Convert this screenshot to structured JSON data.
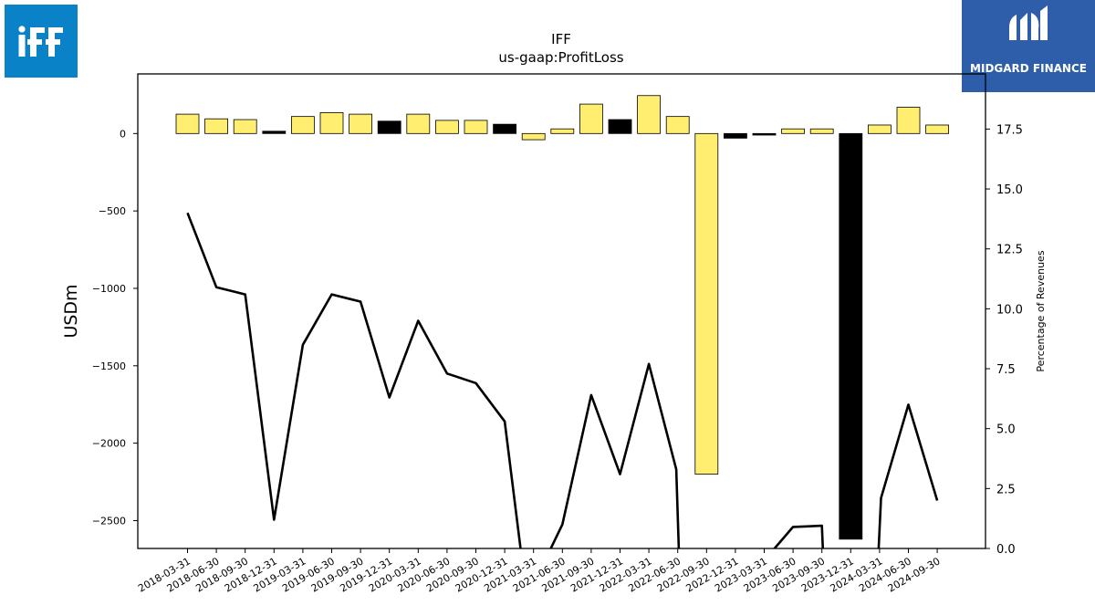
{
  "logos": {
    "left": {
      "text": "iff",
      "color": "#0a82c8"
    },
    "right": {
      "text": "MIDGARD FINANCE",
      "color": "#2e5eaa"
    }
  },
  "chart_data": {
    "type": "bar",
    "title": "IFF",
    "subtitle": "us-gaap:ProfitLoss",
    "ylabel": "USDm",
    "y2label": "Percentage of Revenues",
    "ylim": [
      -2680,
      385
    ],
    "y2lim": [
      0.0,
      19.8
    ],
    "yticks": [
      0,
      -500,
      -1000,
      -1500,
      -2000,
      -2500
    ],
    "ytick_labels": [
      "0",
      "−500",
      "−1000",
      "−1500",
      "−2000",
      "−2500"
    ],
    "y2ticks": [
      0.0,
      2.5,
      5.0,
      7.5,
      10.0,
      12.5,
      15.0,
      17.5
    ],
    "y2tick_labels": [
      "0.0",
      "2.5",
      "5.0",
      "7.5",
      "10.0",
      "12.5",
      "15.0",
      "17.5"
    ],
    "categories": [
      "2018-03-31",
      "2018-06-30",
      "2018-09-30",
      "2018-12-31",
      "2019-03-31",
      "2019-06-30",
      "2019-09-30",
      "2019-12-31",
      "2020-03-31",
      "2020-06-30",
      "2020-09-30",
      "2020-12-31",
      "2021-03-31",
      "2021-06-30",
      "2021-09-30",
      "2021-12-31",
      "2022-03-31",
      "2022-06-30",
      "2022-09-30",
      "2022-12-31",
      "2023-03-31",
      "2023-06-30",
      "2023-09-30",
      "2023-12-31",
      "2024-03-31",
      "2024-06-30",
      "2024-09-30"
    ],
    "series": [
      {
        "type": "bar",
        "values": [
          125,
          95,
          90,
          15,
          110,
          135,
          125,
          80,
          125,
          85,
          85,
          60,
          -40,
          30,
          190,
          90,
          245,
          110,
          -2200,
          -30,
          -10,
          30,
          30,
          -2620,
          55,
          170,
          55
        ],
        "colors": [
          "#ffee70",
          "#ffee70",
          "#ffee70",
          "#000000",
          "#ffee70",
          "#ffee70",
          "#ffee70",
          "#000000",
          "#ffee70",
          "#ffee70",
          "#ffee70",
          "#000000",
          "#ffee70",
          "#ffee70",
          "#ffee70",
          "#000000",
          "#ffee70",
          "#ffee70",
          "#ffee70",
          "#000000",
          "#000000",
          "#ffee70",
          "#ffee70",
          "#000000",
          "#ffee70",
          "#ffee70",
          "#ffee70"
        ]
      },
      {
        "type": "line",
        "axis": "right",
        "color": "#000000",
        "points": [
          [
            0,
            14.0
          ],
          [
            1,
            10.9
          ],
          [
            2,
            10.6
          ],
          [
            3,
            1.2
          ],
          [
            4,
            8.5
          ],
          [
            5,
            10.6
          ],
          [
            6,
            10.3
          ],
          [
            7,
            6.3
          ],
          [
            8,
            9.5
          ],
          [
            9,
            7.3
          ],
          [
            10,
            6.9
          ],
          [
            11,
            5.3
          ],
          [
            11.6,
            -0.5
          ],
          [
            12.4,
            -0.5
          ],
          [
            13,
            1.0
          ],
          [
            14,
            6.4
          ],
          [
            15,
            3.1
          ],
          [
            16,
            7.7
          ],
          [
            16.95,
            3.3
          ],
          [
            17.05,
            -0.5
          ],
          [
            20.0,
            -0.5
          ],
          [
            21,
            0.9
          ],
          [
            22,
            0.95
          ],
          [
            22.05,
            -0.5
          ],
          [
            23.95,
            -0.5
          ],
          [
            24.05,
            2.1
          ],
          [
            25,
            6.0
          ],
          [
            26,
            2.0
          ]
        ]
      }
    ]
  }
}
